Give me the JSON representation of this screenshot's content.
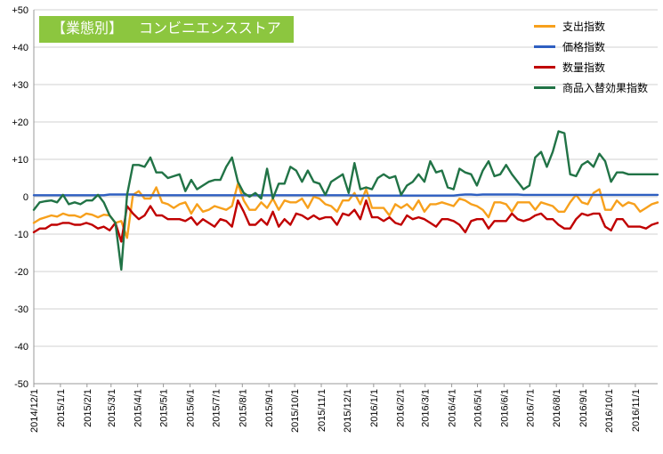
{
  "title": {
    "tag": "【業態別】",
    "text": "コンビニエンスストア",
    "bg": "#8cc63f"
  },
  "chart_data": {
    "type": "line",
    "ylim": [
      -50,
      50
    ],
    "yticks": [
      50,
      40,
      30,
      20,
      10,
      0,
      -10,
      -20,
      -30,
      -40,
      -50
    ],
    "ytick_labels": [
      "+50",
      "+40",
      "+30",
      "+20",
      "+10",
      "0",
      "-10",
      "-20",
      "-30",
      "-40",
      "-50"
    ],
    "x_start": "2014/12/1",
    "x_end": "2016/11/27",
    "xtick_labels": [
      "2014/12/1",
      "2015/1/1",
      "2015/2/1",
      "2015/3/1",
      "2015/4/1",
      "2015/5/1",
      "2015/6/1",
      "2015/7/1",
      "2015/8/1",
      "2015/9/1",
      "2015/10/1",
      "2015/11/1",
      "2015/12/1",
      "2016/1/1",
      "2016/2/1",
      "2016/3/1",
      "2016/4/1",
      "2016/5/1",
      "2016/6/1",
      "2016/7/1",
      "2016/8/1",
      "2016/9/1",
      "2016/10/1",
      "2016/11/1"
    ],
    "grid": "horizontal",
    "legend_position": "top-right",
    "series": [
      {
        "name": "支出指数",
        "color": "#f7a01c",
        "values": [
          -7,
          -6,
          -5.5,
          -5,
          -5.3,
          -4.5,
          -5,
          -5,
          -5.5,
          -4.5,
          -4.8,
          -5.5,
          -4.8,
          -5,
          -7,
          -6.5,
          -11,
          0.5,
          1.5,
          -0.5,
          -0.5,
          2.5,
          -1.5,
          -2,
          -3,
          -2,
          -1.5,
          -4.5,
          -2,
          -4,
          -3.5,
          -2.5,
          -3,
          -3.5,
          -2.5,
          3.5,
          -1,
          -3.5,
          -3.5,
          -1.5,
          -3,
          -0.5,
          -3.5,
          -1,
          -1.5,
          -1.5,
          -0.5,
          -3,
          0,
          -0.5,
          -2,
          -2.5,
          -4,
          -1,
          -1,
          1,
          -2,
          2,
          -3,
          -3,
          -3,
          -5,
          -2,
          -3,
          -2,
          -3.5,
          -1,
          -4,
          -2,
          -2,
          -1.5,
          -2,
          -2.5,
          -0.5,
          -1,
          -2,
          -2.5,
          -3.5,
          -5.5,
          -1.5,
          -1.5,
          -2,
          -4,
          -1.5,
          -1.5,
          -1.5,
          -3.5,
          -1.5,
          -2,
          -2.5,
          -4,
          -4,
          -1.5,
          0.5,
          -1.5,
          -2,
          1,
          2,
          -3.5,
          -3.5,
          -1,
          -2.5,
          -1.5,
          -2,
          -4,
          -3,
          -2,
          -1.5
        ]
      },
      {
        "name": "価格指数",
        "color": "#2e5fc1",
        "values": [
          0.4,
          0.4,
          0.4,
          0.4,
          0.4,
          0.4,
          0.4,
          0.4,
          0.4,
          0.4,
          0.4,
          0.4,
          0.4,
          0.6,
          0.6,
          0.6,
          0.6,
          0.6,
          0.4,
          0.4,
          0.4,
          0.4,
          0.4,
          0.4,
          0.4,
          0.4,
          0.4,
          0.4,
          0.4,
          0.4,
          0.4,
          0.4,
          0.4,
          0.4,
          0.4,
          0.4,
          0.4,
          0.4,
          0.4,
          0.4,
          0.4,
          0.4,
          0.4,
          0.4,
          0.4,
          0.4,
          0.4,
          0.4,
          0.4,
          0.4,
          0.4,
          0.4,
          0.4,
          0.4,
          0.4,
          0.3,
          0.3,
          0.3,
          0.3,
          0.3,
          0.3,
          0.3,
          0.3,
          0.3,
          0.3,
          0.3,
          0.3,
          0.3,
          0.3,
          0.3,
          0.3,
          0.3,
          0.3,
          0.5,
          0.6,
          0.6,
          0.5,
          0.6,
          0.6,
          0.6,
          0.6,
          0.6,
          0.6,
          0.6,
          0.5,
          0.5,
          0.5,
          0.5,
          0.5,
          0.5,
          0.5,
          0.5,
          0.5,
          0.5,
          0.5,
          0.5,
          0.5,
          0.5,
          0.5,
          0.5,
          0.5,
          0.5,
          0.5,
          0.5,
          0.5,
          0.5,
          0.5,
          0.5
        ]
      },
      {
        "name": "数量指数",
        "color": "#c00000",
        "values": [
          -9.5,
          -8.5,
          -8.5,
          -7.5,
          -7.5,
          -7,
          -7,
          -7.5,
          -7.5,
          -7,
          -7.5,
          -8.5,
          -8,
          -9,
          -7,
          -12,
          -2.5,
          -4.5,
          -6,
          -5,
          -2.5,
          -5,
          -5,
          -6,
          -6,
          -6,
          -6.5,
          -5.5,
          -7.5,
          -6,
          -7,
          -8,
          -6,
          -6.5,
          -8,
          -1,
          -4,
          -7.5,
          -7.5,
          -6,
          -7.5,
          -4,
          -8,
          -6,
          -7.5,
          -4.5,
          -5,
          -6,
          -5,
          -6,
          -5.5,
          -5.5,
          -7.5,
          -4.5,
          -5,
          -3.5,
          -6,
          -1,
          -5.5,
          -5.5,
          -6.5,
          -5.5,
          -7,
          -7.5,
          -5,
          -6,
          -5.5,
          -6,
          -7,
          -8,
          -6,
          -6,
          -6.5,
          -7.5,
          -9.5,
          -6.5,
          -6,
          -6,
          -8.5,
          -6.5,
          -6.5,
          -6.5,
          -4.5,
          -6,
          -6.5,
          -6,
          -5,
          -4.5,
          -6,
          -6,
          -7.5,
          -8.5,
          -8.5,
          -6,
          -4.5,
          -5,
          -4.5,
          -4.5,
          -8,
          -9,
          -6,
          -6,
          -8,
          -8,
          -8,
          -8.5,
          -7.5,
          -7
        ]
      },
      {
        "name": "商品入替効果指数",
        "color": "#217346",
        "values": [
          -3.5,
          -1.5,
          -1.2,
          -1,
          -1.5,
          0.5,
          -2,
          -1.5,
          -2,
          -1,
          -1,
          0.5,
          -1.5,
          -5,
          -7,
          -19.5,
          0.5,
          8.5,
          8.5,
          8,
          10.5,
          6.5,
          6.5,
          5,
          5.5,
          6,
          1.5,
          4.5,
          2,
          3,
          4,
          4.5,
          4.5,
          8,
          10.5,
          4,
          1,
          0,
          1,
          -0.5,
          7.5,
          -0.5,
          3.5,
          3.5,
          8,
          7,
          4,
          7,
          4,
          3.5,
          0.5,
          4,
          5,
          6,
          1,
          9,
          2,
          2.5,
          2,
          5,
          6,
          5,
          5.5,
          0.5,
          3,
          4,
          6,
          4,
          9.5,
          6.5,
          7,
          2.5,
          2,
          7.5,
          6.5,
          6,
          3,
          7,
          9.5,
          5.5,
          6,
          8.5,
          6,
          4,
          2,
          3,
          10.5,
          12,
          8,
          12,
          17.5,
          17,
          6,
          5.5,
          8.5,
          9.5,
          8,
          11.5,
          9.5,
          4,
          6.5,
          6.5,
          6,
          6,
          6,
          6,
          6,
          6
        ]
      }
    ]
  }
}
